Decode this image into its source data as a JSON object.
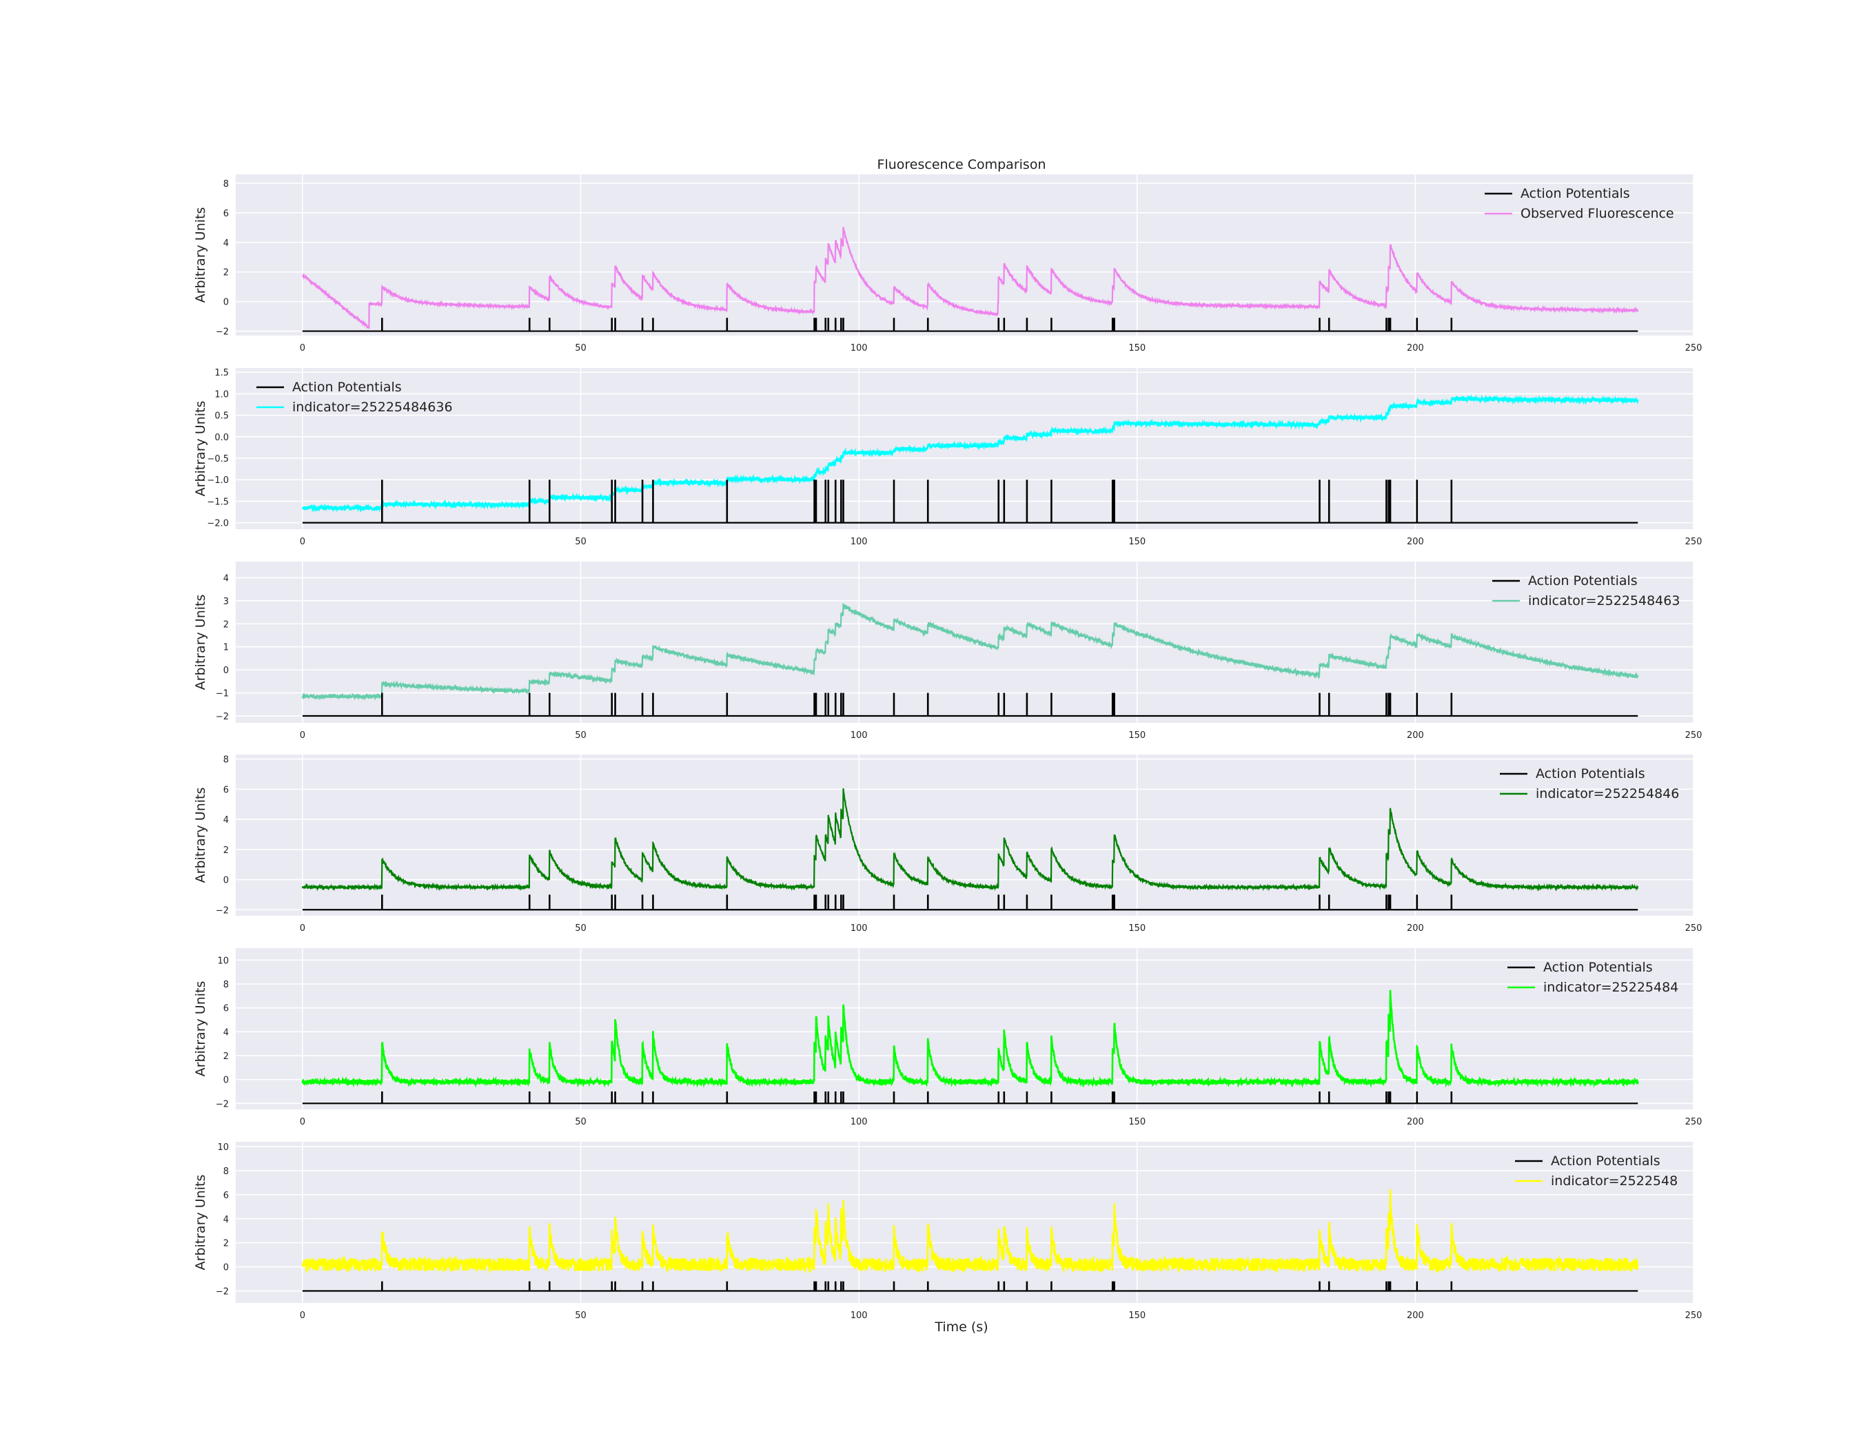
{
  "figure": {
    "title": "Fluorescence Comparison",
    "xlabel": "Time (s)",
    "ylabel": "Arbitrary Units"
  },
  "colors": {
    "panel_bg": "#eaeaf2",
    "grid": "#ffffff",
    "spikes": "#000000"
  },
  "chart_data": {
    "type": "line",
    "title": "Fluorescence Comparison",
    "xlabel": "Time (s)",
    "xlim": [
      -12,
      250
    ],
    "xticks": [
      0,
      50,
      100,
      150,
      200,
      250
    ],
    "duration": 240,
    "spike_times": [
      14.3,
      40.8,
      44.4,
      55.6,
      56.2,
      61.1,
      63.0,
      76.3,
      92.0,
      92.3,
      94.0,
      94.5,
      95.8,
      96.8,
      97.2,
      106.3,
      112.4,
      125.1,
      126.1,
      130.2,
      134.6,
      145.6,
      145.9,
      182.8,
      184.5,
      194.8,
      195.2,
      195.5,
      200.3,
      206.5
    ],
    "panels": [
      {
        "ylabel": "Arbitrary Units",
        "ylim": [
          -2.3,
          8.6
        ],
        "yticks": [
          -2,
          0,
          2,
          4,
          6,
          8
        ],
        "ytick_labels": [
          "−2",
          "0",
          "2",
          "4",
          "6",
          "8"
        ],
        "spike_baseline": -2.0,
        "spike_top": -1.1,
        "legend_position": "upper right",
        "legend": [
          "Action Potentials",
          "Observed Fluorescence"
        ],
        "series": [
          {
            "name": "Action Potentials",
            "color": "#000000"
          },
          {
            "name": "Observed Fluorescence",
            "color": "#ee82ee",
            "baseline": -0.3,
            "drift": [
              0.4,
              -0.75,
              -0.35
            ],
            "amp_scale": 1.1,
            "tau": 3.5,
            "noise": 0.08,
            "start_peak": 1.8
          }
        ]
      },
      {
        "ylabel": "Arbitrary Units",
        "ylim": [
          -2.15,
          1.6
        ],
        "yticks": [
          -2.0,
          -1.5,
          -1.0,
          -0.5,
          0.0,
          0.5,
          1.0,
          1.5
        ],
        "ytick_labels": [
          "−2.0",
          "−1.5",
          "−1.0",
          "−0.5",
          "0.0",
          "0.5",
          "1.0",
          "1.5"
        ],
        "spike_baseline": -2.0,
        "spike_top": -1.0,
        "legend_position": "upper left",
        "legend": [
          "Action Potentials",
          "indicator=25225484636"
        ],
        "series": [
          {
            "name": "Action Potentials",
            "color": "#000000"
          },
          {
            "name": "indicator=25225484636",
            "color": "#00ffff",
            "baseline": -1.65,
            "step": 0.09,
            "leak": 0.0032,
            "noise": 0.055
          }
        ]
      },
      {
        "ylabel": "Arbitrary Units",
        "ylim": [
          -2.3,
          4.7
        ],
        "yticks": [
          -2,
          -1,
          0,
          1,
          2,
          3,
          4
        ],
        "ytick_labels": [
          "−2",
          "−1",
          "0",
          "1",
          "2",
          "3",
          "4"
        ],
        "spike_baseline": -2.0,
        "spike_top": -1.0,
        "legend_position": "upper right",
        "legend": [
          "Action Potentials",
          "indicator=2522548463"
        ],
        "series": [
          {
            "name": "Action Potentials",
            "color": "#000000"
          },
          {
            "name": "indicator=2522548463",
            "color": "#66cdaa",
            "baseline": -1.15,
            "amp": 0.48,
            "tau": 30,
            "noise": 0.08
          }
        ]
      },
      {
        "ylabel": "Arbitrary Units",
        "ylim": [
          -2.4,
          8.3
        ],
        "yticks": [
          -2,
          0,
          2,
          4,
          6,
          8
        ],
        "ytick_labels": [
          "−2",
          "0",
          "2",
          "4",
          "6",
          "8"
        ],
        "spike_baseline": -2.0,
        "spike_top": -1.0,
        "legend_position": "upper right",
        "legend": [
          "Action Potentials",
          "indicator=252254846"
        ],
        "series": [
          {
            "name": "Action Potentials",
            "color": "#000000"
          },
          {
            "name": "indicator=252254846",
            "color": "#008000",
            "baseline": -0.5,
            "amp": 1.95,
            "tau": 2.5,
            "noise": 0.1
          }
        ]
      },
      {
        "ylabel": "Arbitrary Units",
        "ylim": [
          -2.5,
          11.0
        ],
        "yticks": [
          -2,
          0,
          2,
          4,
          6,
          8,
          10
        ],
        "ytick_labels": [
          "−2",
          "0",
          "2",
          "4",
          "6",
          "8",
          "10"
        ],
        "spike_baseline": -2.0,
        "spike_top": -1.0,
        "legend_position": "upper right",
        "legend": [
          "Action Potentials",
          "indicator=25225484"
        ],
        "series": [
          {
            "name": "Action Potentials",
            "color": "#000000"
          },
          {
            "name": "indicator=25225484",
            "color": "#00ff00",
            "baseline": -0.2,
            "amp": 3.4,
            "tau": 0.9,
            "noise": 0.22
          }
        ]
      },
      {
        "ylabel": "Arbitrary Units",
        "ylim": [
          -3.0,
          10.4
        ],
        "yticks": [
          -2,
          0,
          2,
          4,
          6,
          8,
          10
        ],
        "ytick_labels": [
          "−2",
          "0",
          "2",
          "4",
          "6",
          "8",
          "10"
        ],
        "spike_baseline": -2.0,
        "spike_top": -1.2,
        "legend_position": "upper right",
        "legend": [
          "Action Potentials",
          "indicator=2522548"
        ],
        "series": [
          {
            "name": "Action Potentials",
            "color": "#000000"
          },
          {
            "name": "indicator=2522548",
            "color": "#ffff00",
            "baseline": 0.2,
            "amp": 3.3,
            "tau": 0.6,
            "noise": 0.55
          }
        ]
      }
    ]
  }
}
